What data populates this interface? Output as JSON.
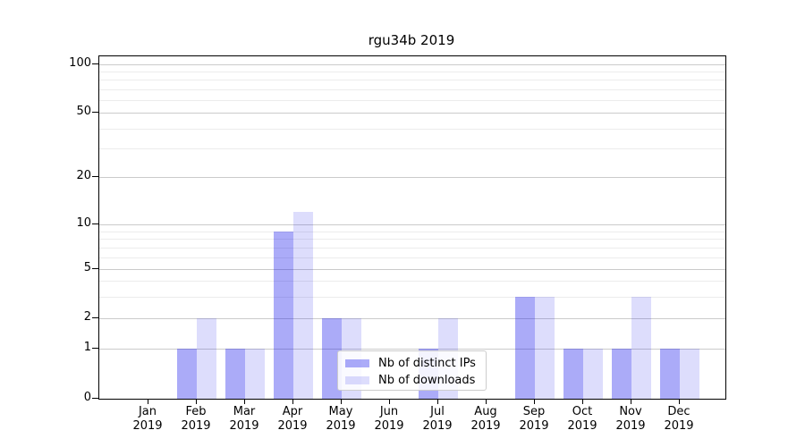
{
  "title": "rgu34b 2019",
  "chart_data": {
    "type": "bar",
    "title": "rgu34b 2019",
    "categories": [
      "Jan 2019",
      "Feb 2019",
      "Mar 2019",
      "Apr 2019",
      "May 2019",
      "Jun 2019",
      "Jul 2019",
      "Aug 2019",
      "Sep 2019",
      "Oct 2019",
      "Nov 2019",
      "Dec 2019"
    ],
    "months": [
      "Jan",
      "Feb",
      "Mar",
      "Apr",
      "May",
      "Jun",
      "Jul",
      "Aug",
      "Sep",
      "Oct",
      "Nov",
      "Dec"
    ],
    "year": "2019",
    "series": [
      {
        "name": "Nb of distinct IPs",
        "color": "rgba(13,13,234,0.35)",
        "values": [
          0,
          1,
          1,
          9,
          2,
          0,
          1,
          0,
          3,
          1,
          1,
          1
        ]
      },
      {
        "name": "Nb of downloads",
        "color": "rgba(13,13,234,0.14)",
        "values": [
          0,
          2,
          1,
          12,
          2,
          0,
          2,
          0,
          3,
          1,
          3,
          1
        ]
      }
    ],
    "xlabel": "",
    "ylabel": "",
    "y_axis": {
      "scale": "symlog-like",
      "major_ticks": [
        0,
        1,
        2,
        5,
        10,
        20,
        50,
        100
      ],
      "minor_ticks": [
        3,
        4,
        6,
        7,
        8,
        9,
        30,
        40,
        60,
        70,
        80,
        90
      ],
      "tick_fractions": {
        "0": 0,
        "1": 0.1462,
        "2": 0.235,
        "5": 0.3786,
        "10": 0.5091,
        "20": 0.6475,
        "50": 0.8355,
        "100": 0.9765
      },
      "ylim": [
        0,
        110
      ]
    },
    "grid": {
      "major_color": "#cbcbcb",
      "minor_color": "#ececec",
      "shown": "both"
    },
    "legend_position": "lower center",
    "bar_group_style": "side-by-side, dark left / light right"
  }
}
